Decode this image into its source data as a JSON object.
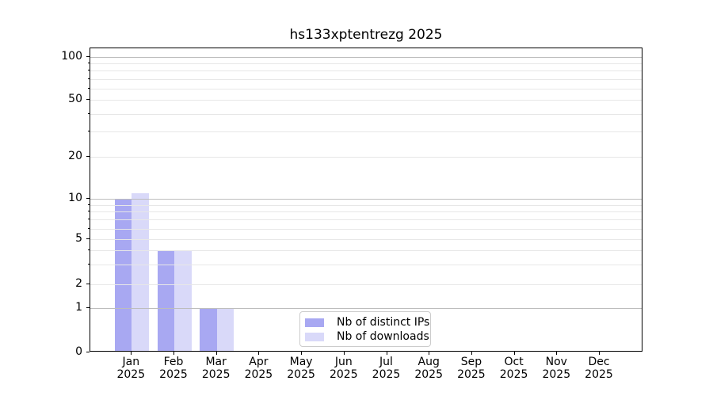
{
  "title": "hs133xptentrezg 2025",
  "chart_data": {
    "type": "bar",
    "categories": [
      "Jan",
      "Feb",
      "Mar",
      "Apr",
      "May",
      "Jun",
      "Jul",
      "Aug",
      "Sep",
      "Oct",
      "Nov",
      "Dec"
    ],
    "year": "2025",
    "series": [
      {
        "name": "Nb of distinct IPs",
        "color": "#a8a8f2",
        "values": [
          10,
          4,
          1,
          0,
          0,
          0,
          0,
          0,
          0,
          0,
          0,
          0
        ]
      },
      {
        "name": "Nb of downloads",
        "color": "#d9d9f9",
        "values": [
          11,
          4,
          1,
          0,
          0,
          0,
          0,
          0,
          0,
          0,
          0,
          0
        ]
      }
    ],
    "yticks": [
      0,
      1,
      2,
      5,
      10,
      20,
      50,
      100
    ],
    "ylabel": "",
    "xlabel": "",
    "ylim": [
      0,
      115
    ],
    "yscale": "symlog",
    "grid": true,
    "legend_position": "lower center"
  }
}
